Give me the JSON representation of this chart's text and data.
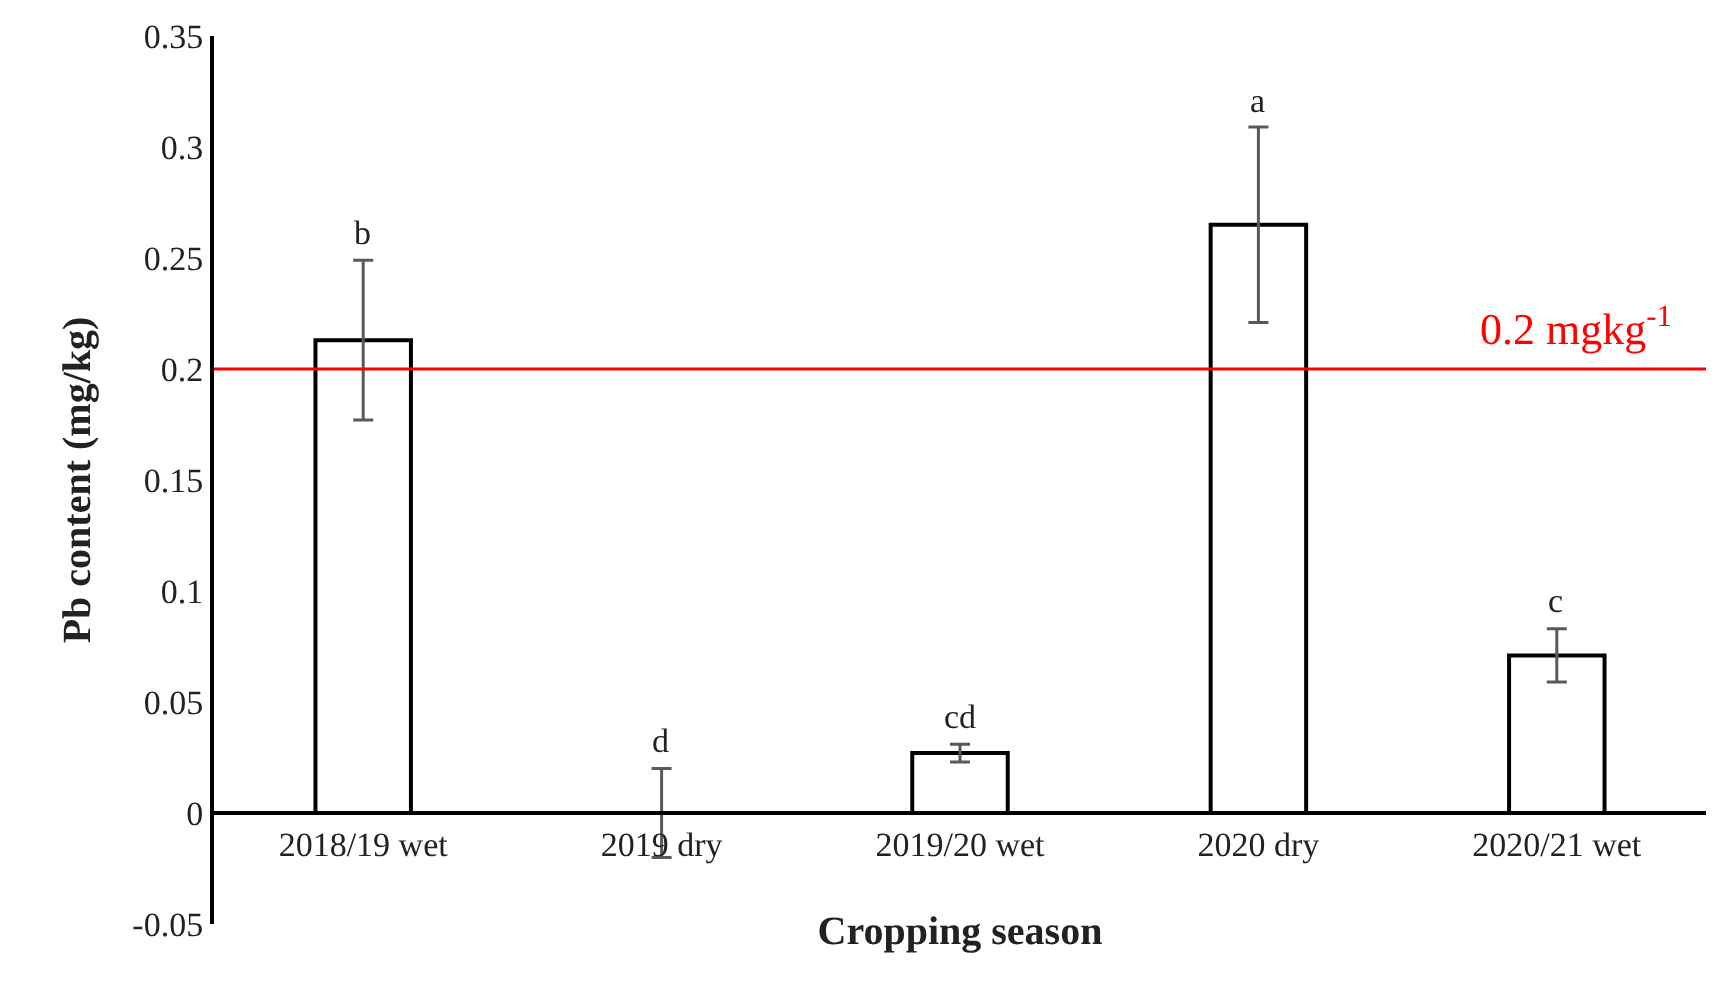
{
  "chart_data": {
    "type": "bar",
    "xlabel": "Cropping season",
    "ylabel": "Pb content (mg/kg)",
    "categories": [
      "2018/19 wet",
      "2019 dry",
      "2019/20 wet",
      "2020 dry",
      "2020/21 wet"
    ],
    "values": [
      0.213,
      0,
      0.027,
      0.265,
      0.071
    ],
    "errors": [
      0.036,
      0.02,
      0.004,
      0.044,
      0.012
    ],
    "color": "#ffffff",
    "ylim": [
      -0.05,
      0.35
    ],
    "yticks": [
      -0.05,
      0,
      0.05,
      0.1,
      0.15,
      0.2,
      0.25,
      0.3,
      0.35
    ],
    "ref_lines": [
      {
        "axis": "y",
        "value": 0.2,
        "label": "0.2 mgkg$^{-1}$",
        "color": "#ff0000"
      }
    ],
    "annotations": [
      "b",
      "d",
      "cd",
      "a",
      "c"
    ]
  }
}
